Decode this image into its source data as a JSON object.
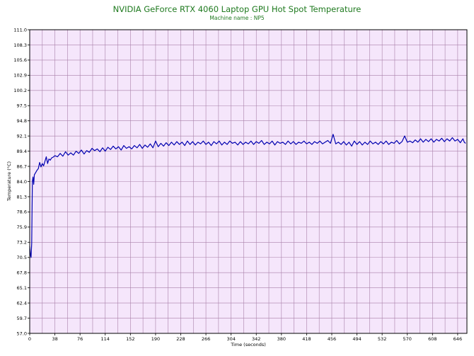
{
  "chart_data": {
    "type": "line",
    "title": "NVIDIA GeForce RTX 4060 Laptop GPU Hot Spot Temperature",
    "subtitle": "Machine name : NP5",
    "xlabel": "Time (seconds)",
    "ylabel": "Temperature (°C)",
    "xlim": [
      0,
      660
    ],
    "ylim": [
      57.0,
      111.0
    ],
    "x_ticks": [
      0,
      38,
      76,
      114,
      152,
      190,
      228,
      266,
      304,
      342,
      380,
      418,
      456,
      494,
      532,
      570,
      608,
      646
    ],
    "y_ticks": [
      "57.0",
      "59.7",
      "62.4",
      "65.1",
      "67.8",
      "70.5",
      "73.2",
      "75.9",
      "78.6",
      "81.3",
      "84.0",
      "86.7",
      "89.4",
      "92.1",
      "94.8",
      "97.5",
      "100.2",
      "102.9",
      "105.6",
      "108.3",
      "111.0"
    ],
    "grid": true,
    "colors": {
      "plot_background": "#f5e6fb",
      "grid": "#a980a9",
      "line": "#0000b0",
      "title": "#1f7a1f"
    },
    "series": [
      {
        "name": "",
        "points": [
          [
            0,
            72.5
          ],
          [
            1,
            71.0
          ],
          [
            2,
            70.5
          ],
          [
            3,
            73.0
          ],
          [
            4,
            84.0
          ],
          [
            5,
            84.8
          ],
          [
            6,
            83.5
          ],
          [
            7,
            85.2
          ],
          [
            9,
            85.6
          ],
          [
            11,
            86.0
          ],
          [
            13,
            86.3
          ],
          [
            15,
            87.4
          ],
          [
            17,
            86.6
          ],
          [
            19,
            87.2
          ],
          [
            21,
            86.8
          ],
          [
            23,
            87.6
          ],
          [
            25,
            88.4
          ],
          [
            27,
            87.2
          ],
          [
            29,
            88.0
          ],
          [
            31,
            87.8
          ],
          [
            33,
            88.2
          ],
          [
            35,
            88.3
          ],
          [
            38,
            88.6
          ],
          [
            42,
            88.4
          ],
          [
            46,
            89.0
          ],
          [
            50,
            88.5
          ],
          [
            54,
            89.3
          ],
          [
            58,
            88.7
          ],
          [
            62,
            89.1
          ],
          [
            66,
            88.7
          ],
          [
            70,
            89.4
          ],
          [
            74,
            89.0
          ],
          [
            78,
            89.6
          ],
          [
            82,
            88.9
          ],
          [
            86,
            89.5
          ],
          [
            90,
            89.2
          ],
          [
            94,
            89.9
          ],
          [
            98,
            89.5
          ],
          [
            102,
            89.8
          ],
          [
            106,
            89.3
          ],
          [
            110,
            90.0
          ],
          [
            114,
            89.4
          ],
          [
            118,
            90.1
          ],
          [
            122,
            89.7
          ],
          [
            126,
            90.3
          ],
          [
            130,
            89.8
          ],
          [
            134,
            90.2
          ],
          [
            138,
            89.6
          ],
          [
            142,
            90.4
          ],
          [
            146,
            89.9
          ],
          [
            150,
            90.2
          ],
          [
            154,
            89.8
          ],
          [
            158,
            90.4
          ],
          [
            162,
            90.0
          ],
          [
            166,
            90.6
          ],
          [
            170,
            89.9
          ],
          [
            174,
            90.5
          ],
          [
            178,
            90.1
          ],
          [
            182,
            90.7
          ],
          [
            186,
            90.0
          ],
          [
            190,
            91.2
          ],
          [
            194,
            90.2
          ],
          [
            198,
            90.8
          ],
          [
            202,
            90.3
          ],
          [
            206,
            90.9
          ],
          [
            210,
            90.4
          ],
          [
            214,
            91.0
          ],
          [
            218,
            90.5
          ],
          [
            222,
            91.1
          ],
          [
            226,
            90.6
          ],
          [
            230,
            91.0
          ],
          [
            234,
            90.4
          ],
          [
            238,
            91.2
          ],
          [
            242,
            90.6
          ],
          [
            246,
            91.1
          ],
          [
            250,
            90.5
          ],
          [
            254,
            91.0
          ],
          [
            258,
            90.7
          ],
          [
            262,
            91.2
          ],
          [
            266,
            90.6
          ],
          [
            270,
            91.0
          ],
          [
            274,
            90.4
          ],
          [
            278,
            91.1
          ],
          [
            282,
            90.7
          ],
          [
            286,
            91.2
          ],
          [
            290,
            90.5
          ],
          [
            294,
            91.0
          ],
          [
            298,
            90.6
          ],
          [
            302,
            91.2
          ],
          [
            306,
            90.8
          ],
          [
            310,
            91.0
          ],
          [
            314,
            90.5
          ],
          [
            318,
            91.1
          ],
          [
            322,
            90.6
          ],
          [
            326,
            91.0
          ],
          [
            330,
            90.7
          ],
          [
            334,
            91.2
          ],
          [
            338,
            90.6
          ],
          [
            342,
            91.1
          ],
          [
            346,
            90.8
          ],
          [
            350,
            91.3
          ],
          [
            354,
            90.6
          ],
          [
            358,
            91.0
          ],
          [
            362,
            90.7
          ],
          [
            366,
            91.2
          ],
          [
            370,
            90.5
          ],
          [
            374,
            91.1
          ],
          [
            378,
            90.8
          ],
          [
            382,
            91.0
          ],
          [
            386,
            90.6
          ],
          [
            390,
            91.2
          ],
          [
            394,
            90.7
          ],
          [
            398,
            91.1
          ],
          [
            402,
            90.6
          ],
          [
            406,
            91.0
          ],
          [
            410,
            90.8
          ],
          [
            414,
            91.2
          ],
          [
            418,
            90.7
          ],
          [
            422,
            91.0
          ],
          [
            426,
            90.6
          ],
          [
            430,
            91.1
          ],
          [
            434,
            90.8
          ],
          [
            438,
            91.2
          ],
          [
            442,
            90.7
          ],
          [
            446,
            91.0
          ],
          [
            450,
            91.3
          ],
          [
            454,
            90.8
          ],
          [
            458,
            92.4
          ],
          [
            462,
            90.7
          ],
          [
            466,
            91.0
          ],
          [
            470,
            90.6
          ],
          [
            474,
            91.1
          ],
          [
            478,
            90.5
          ],
          [
            482,
            91.0
          ],
          [
            486,
            90.3
          ],
          [
            490,
            91.2
          ],
          [
            494,
            90.6
          ],
          [
            498,
            91.1
          ],
          [
            502,
            90.5
          ],
          [
            506,
            91.0
          ],
          [
            510,
            90.6
          ],
          [
            514,
            91.2
          ],
          [
            518,
            90.7
          ],
          [
            522,
            91.0
          ],
          [
            526,
            90.6
          ],
          [
            530,
            91.1
          ],
          [
            534,
            90.7
          ],
          [
            538,
            91.2
          ],
          [
            542,
            90.6
          ],
          [
            546,
            91.0
          ],
          [
            550,
            90.8
          ],
          [
            554,
            91.3
          ],
          [
            558,
            90.7
          ],
          [
            562,
            91.1
          ],
          [
            566,
            92.1
          ],
          [
            570,
            91.0
          ],
          [
            574,
            91.2
          ],
          [
            578,
            90.9
          ],
          [
            582,
            91.4
          ],
          [
            586,
            91.0
          ],
          [
            590,
            91.6
          ],
          [
            594,
            91.0
          ],
          [
            598,
            91.5
          ],
          [
            602,
            91.1
          ],
          [
            606,
            91.6
          ],
          [
            610,
            91.0
          ],
          [
            614,
            91.5
          ],
          [
            618,
            91.2
          ],
          [
            622,
            91.7
          ],
          [
            626,
            91.1
          ],
          [
            630,
            91.6
          ],
          [
            634,
            91.2
          ],
          [
            638,
            91.8
          ],
          [
            642,
            91.2
          ],
          [
            646,
            91.5
          ],
          [
            650,
            90.9
          ],
          [
            654,
            91.6
          ],
          [
            656,
            91.0
          ],
          [
            658,
            90.8
          ]
        ]
      }
    ]
  }
}
